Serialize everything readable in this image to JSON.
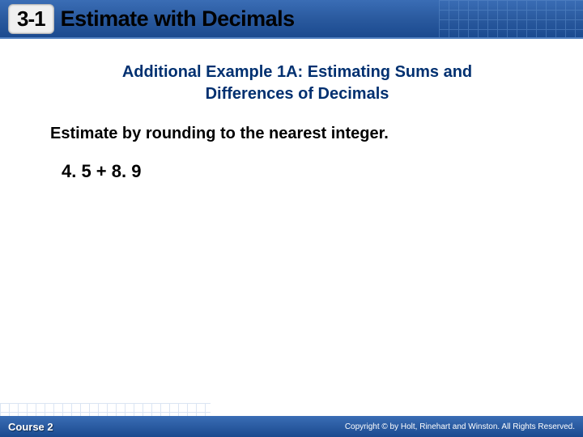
{
  "header": {
    "lesson_number": "3-1",
    "title": "Estimate with Decimals"
  },
  "content": {
    "example_title_line1": "Additional Example 1A: Estimating Sums and",
    "example_title_line2": "Differences of Decimals",
    "instruction": "Estimate by rounding to the nearest integer.",
    "problem": "4. 5 + 8. 9"
  },
  "footer": {
    "course": "Course 2",
    "copyright": "Copyright © by Holt, Rinehart and Winston. All Rights Reserved."
  },
  "colors": {
    "header_gradient_top": "#3a6db5",
    "header_gradient_bottom": "#1b4a8f",
    "title_color": "#003070",
    "text_color": "#000000",
    "background": "#ffffff"
  }
}
